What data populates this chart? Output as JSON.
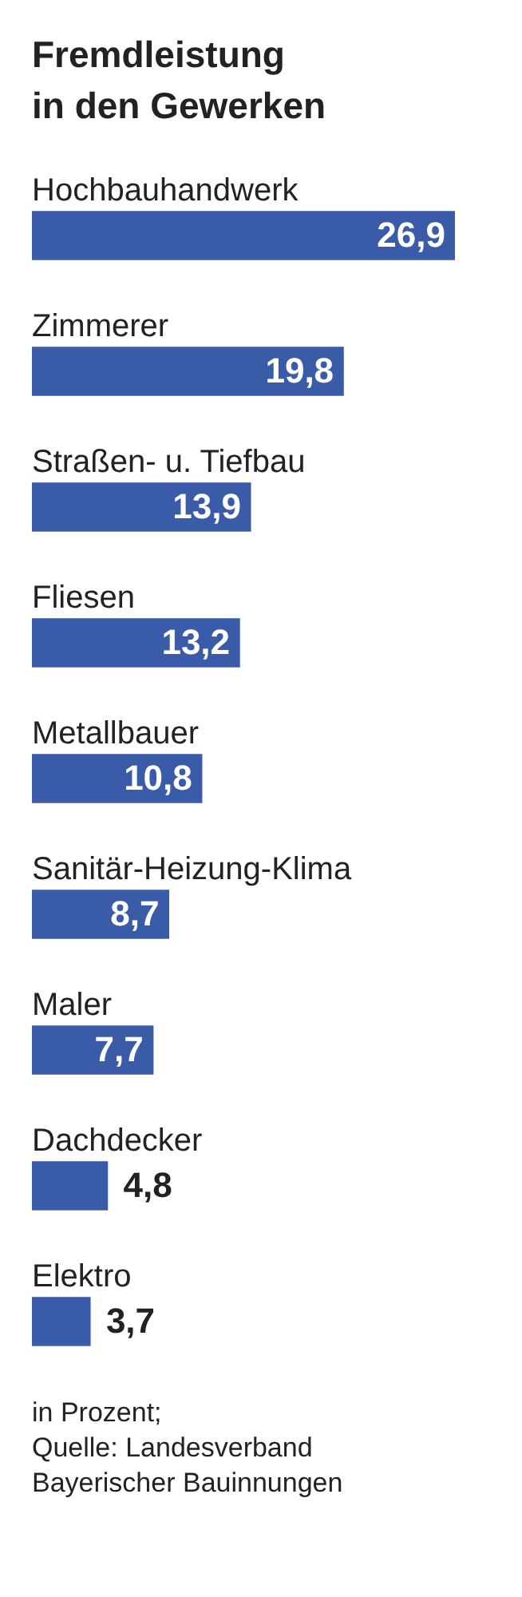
{
  "chart_data": {
    "type": "bar",
    "orientation": "horizontal",
    "title": "Fremdleistung\nin den Gewerken",
    "categories": [
      "Hochbauhandwerk",
      "Zimmerer",
      "Straßen- u. Tiefbau",
      "Fliesen",
      "Metallbauer",
      "Sanitär-Heizung-Klima",
      "Maler",
      "Dachdecker",
      "Elektro"
    ],
    "values": [
      26.9,
      19.8,
      13.9,
      13.2,
      10.8,
      8.7,
      7.7,
      4.8,
      3.7
    ],
    "value_labels": [
      "26,9",
      "19,8",
      "13,9",
      "13,2",
      "10,8",
      "8,7",
      "7,7",
      "4,8",
      "3,7"
    ],
    "color": "#3a5ba8",
    "annotations": [
      "in Prozent;\nQuelle: Landesverband\nBayerischer Bauinnungen"
    ]
  }
}
